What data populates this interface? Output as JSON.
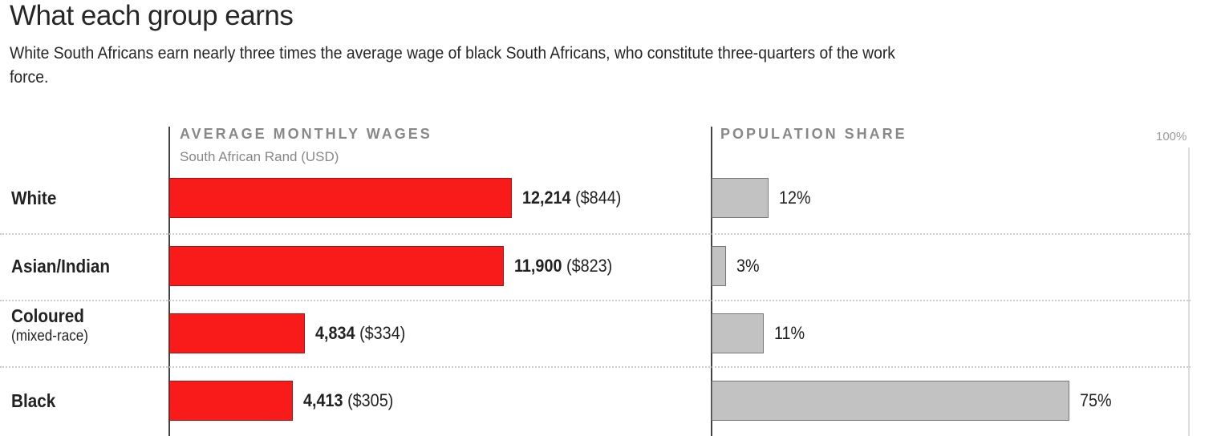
{
  "chart_data": {
    "type": "bar",
    "title": "What each group earns",
    "subtitle": "White South Africans earn nearly three times the average wage of black South Africans, who constitute three-quarters of the work force.",
    "categories": [
      "White",
      "Asian/Indian",
      "Coloured",
      "Black"
    ],
    "category_notes": [
      "",
      "",
      "(mixed-race)",
      ""
    ],
    "series": [
      {
        "name": "AVERAGE MONTHLY WAGES",
        "unit_label": "South African Rand (USD)",
        "values": [
          12214,
          11900,
          4834,
          4413
        ],
        "labels": [
          "12,214",
          "11,900",
          "4,834",
          "4,413"
        ],
        "usd_labels": [
          "($844)",
          "($823)",
          "($334)",
          "($305)"
        ],
        "color": "#f91a1a"
      },
      {
        "name": "POPULATION SHARE",
        "values": [
          12,
          3,
          11,
          75
        ],
        "labels": [
          "12%",
          "3%",
          "11%",
          "75%"
        ],
        "max_label": "100%",
        "xlim": [
          0,
          100
        ],
        "color": "#c2c2c2"
      }
    ]
  }
}
